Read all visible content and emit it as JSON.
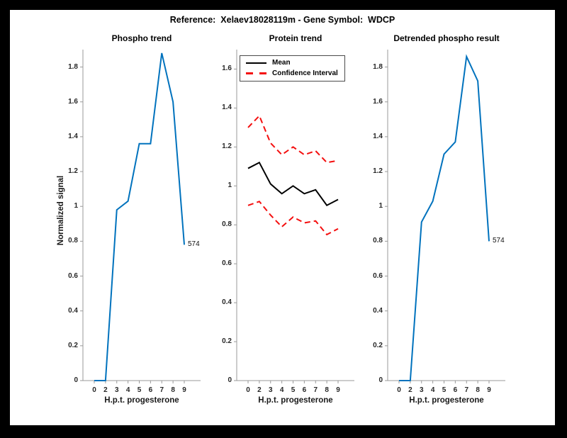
{
  "figure_title": "Reference:  Xelaev18028119m - Gene Symbol:  WDCP",
  "colors": {
    "line_blue": "#0072BD",
    "line_red": "#f40f0f",
    "line_black": "#000000",
    "axis_gray": "#999999",
    "tick_text": "#262626",
    "frame_black": "#000000",
    "background_white": "#ffffff"
  },
  "chart_data": [
    {
      "type": "line",
      "title": "Phospho trend",
      "xlabel": "H.p.t. progesterone",
      "ylabel": "Normalized signal",
      "x_tick_labels": [
        "0",
        "2",
        "3",
        "4",
        "5",
        "6",
        "7",
        "8",
        "9"
      ],
      "y_tick_labels": [
        "0",
        "0.2",
        "0.4",
        "0.6",
        "0.8",
        "1",
        "1.2",
        "1.4",
        "1.6",
        "1.8"
      ],
      "ylim": [
        0,
        1.9
      ],
      "grid": false,
      "series": [
        {
          "name": "phospho-trend",
          "color": "#0072BD",
          "style": "solid",
          "values": [
            0,
            0,
            0.98,
            1.03,
            1.36,
            1.36,
            1.88,
            1.6,
            0.78
          ]
        }
      ],
      "end_label": "574",
      "legend": null
    },
    {
      "type": "line",
      "title": "Protein trend",
      "xlabel": "H.p.t. progesterone",
      "ylabel": "",
      "x_tick_labels": [
        "0",
        "2",
        "3",
        "4",
        "5",
        "6",
        "7",
        "8",
        "9"
      ],
      "y_tick_labels": [
        "0",
        "0.2",
        "0.4",
        "0.6",
        "0.8",
        "1",
        "1.2",
        "1.4",
        "1.6"
      ],
      "ylim": [
        0,
        1.7
      ],
      "grid": false,
      "series": [
        {
          "name": "mean",
          "color": "#000000",
          "style": "solid",
          "values": [
            1.09,
            1.12,
            1.01,
            0.96,
            1.0,
            0.96,
            0.98,
            0.9,
            0.93
          ]
        },
        {
          "name": "confidence-interval-upper",
          "color": "#f40f0f",
          "style": "dashed",
          "values": [
            1.3,
            1.36,
            1.22,
            1.16,
            1.2,
            1.16,
            1.18,
            1.12,
            1.13
          ]
        },
        {
          "name": "confidence-interval-lower",
          "color": "#f40f0f",
          "style": "dashed",
          "values": [
            0.9,
            0.92,
            0.85,
            0.79,
            0.84,
            0.81,
            0.82,
            0.75,
            0.78
          ]
        }
      ],
      "end_label": null,
      "legend": {
        "position": "top-left",
        "entries": [
          {
            "label": "Mean",
            "color": "#000000",
            "style": "solid"
          },
          {
            "label": "Confidence Interval",
            "color": "#f40f0f",
            "style": "dashed"
          }
        ]
      }
    },
    {
      "type": "line",
      "title": "Detrended phospho result",
      "xlabel": "H.p.t. progesterone",
      "ylabel": "",
      "x_tick_labels": [
        "0",
        "2",
        "3",
        "4",
        "5",
        "6",
        "7",
        "8",
        "9"
      ],
      "y_tick_labels": [
        "0",
        "0.2",
        "0.4",
        "0.6",
        "0.8",
        "1",
        "1.2",
        "1.4",
        "1.6",
        "1.8"
      ],
      "ylim": [
        0,
        1.9
      ],
      "grid": false,
      "series": [
        {
          "name": "detrended-phospho",
          "color": "#0072BD",
          "style": "solid",
          "values": [
            0,
            0,
            0.91,
            1.03,
            1.3,
            1.37,
            1.86,
            1.72,
            0.8
          ]
        }
      ],
      "end_label": "574",
      "legend": null
    }
  ]
}
